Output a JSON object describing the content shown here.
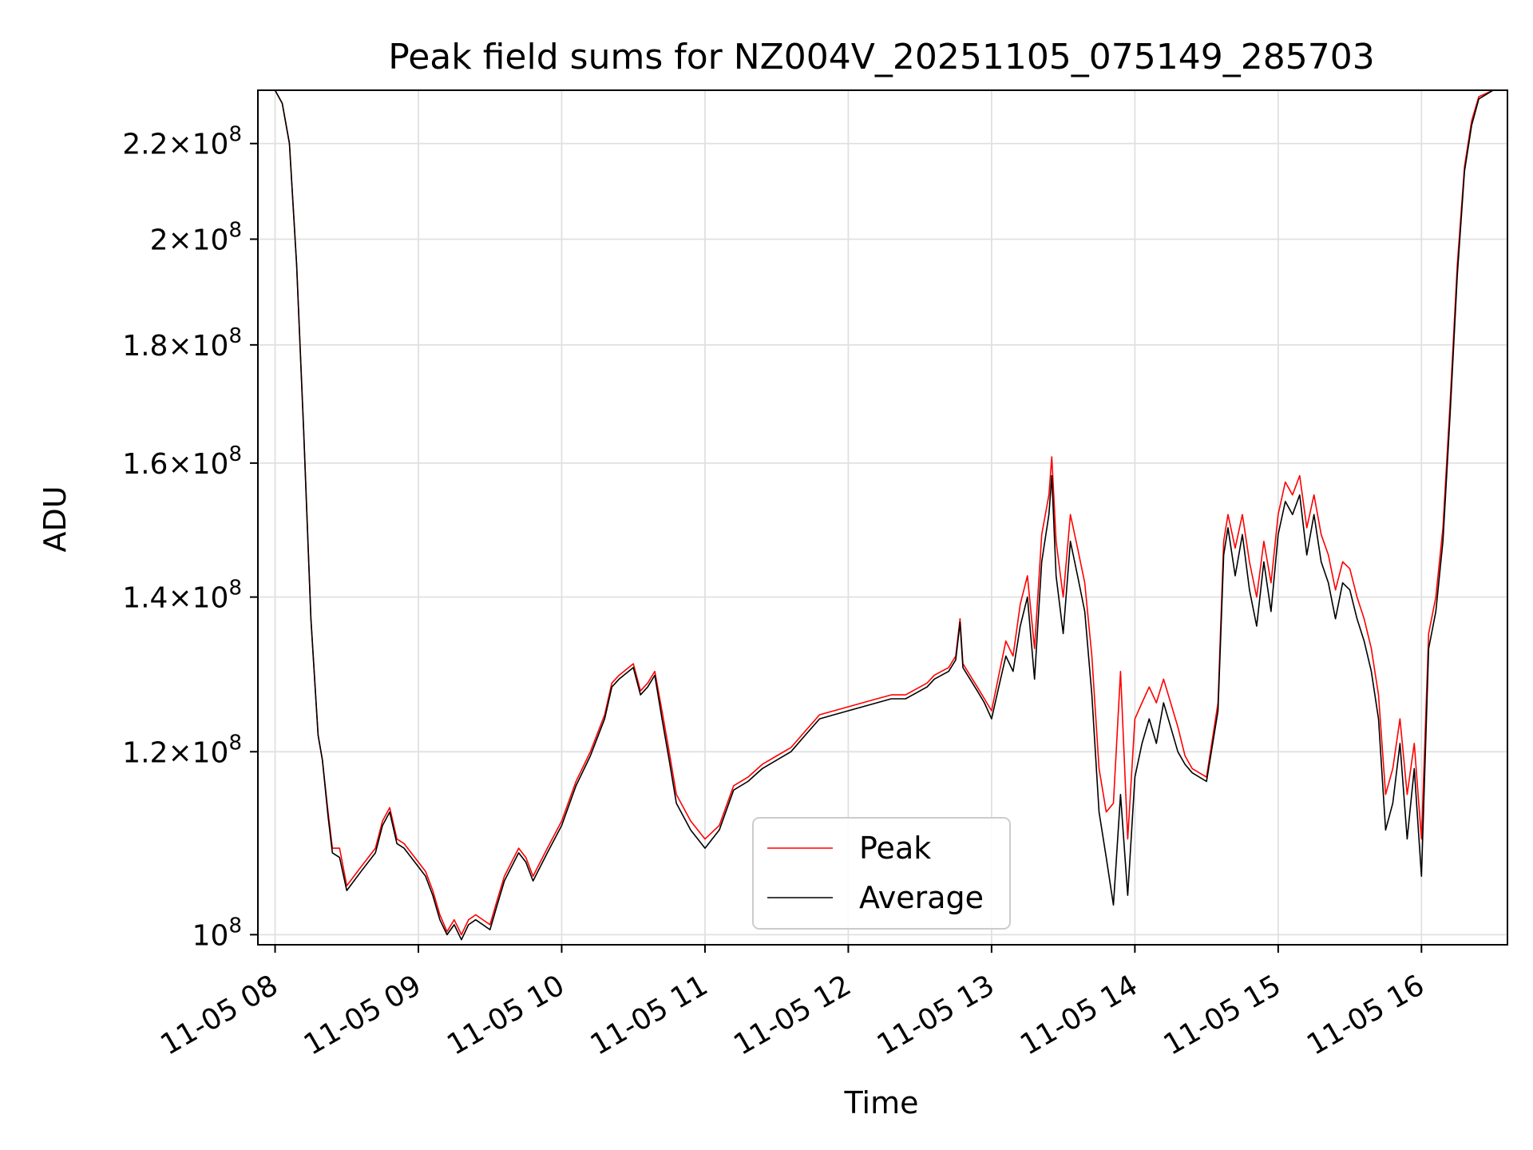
{
  "chart_data": {
    "type": "line",
    "title": "Peak field sums for NZ004V_20251105_075149_285703",
    "xlabel": "Time",
    "ylabel": "ADU",
    "yscale": "log",
    "ylim": [
      99000000,
      232000000
    ],
    "xlim": [
      7.88,
      16.6
    ],
    "grid": true,
    "legend_position": "lower-center",
    "xticks": [
      {
        "value": 8,
        "label": "11-05 08"
      },
      {
        "value": 9,
        "label": "11-05 09"
      },
      {
        "value": 10,
        "label": "11-05 10"
      },
      {
        "value": 11,
        "label": "11-05 11"
      },
      {
        "value": 12,
        "label": "11-05 12"
      },
      {
        "value": 13,
        "label": "11-05 13"
      },
      {
        "value": 14,
        "label": "11-05 14"
      },
      {
        "value": 15,
        "label": "11-05 15"
      },
      {
        "value": 16,
        "label": "11-05 16"
      }
    ],
    "yticks": [
      {
        "value": 100000000,
        "mant": "",
        "exp": "8"
      },
      {
        "value": 120000000,
        "mant": "1.2",
        "exp": "8"
      },
      {
        "value": 140000000,
        "mant": "1.4",
        "exp": "8"
      },
      {
        "value": 160000000,
        "mant": "1.6",
        "exp": "8"
      },
      {
        "value": 180000000,
        "mant": "1.8",
        "exp": "8"
      },
      {
        "value": 200000000,
        "mant": "2",
        "exp": "8"
      },
      {
        "value": 220000000,
        "mant": "2.2",
        "exp": "8"
      }
    ],
    "tick_base": "10",
    "times_sign": "×",
    "series": [
      {
        "name": "Peak",
        "color": "#ff0000",
        "points": [
          [
            7.88,
            232.0
          ],
          [
            8.0,
            232.0
          ],
          [
            8.05,
            229.0
          ],
          [
            8.1,
            220.0
          ],
          [
            8.15,
            195.0
          ],
          [
            8.2,
            165.0
          ],
          [
            8.25,
            137.0
          ],
          [
            8.3,
            122.0
          ],
          [
            8.33,
            119.0
          ],
          [
            8.37,
            113.0
          ],
          [
            8.4,
            109.0
          ],
          [
            8.45,
            109.0
          ],
          [
            8.5,
            105.0
          ],
          [
            8.6,
            107.0
          ],
          [
            8.7,
            109.0
          ],
          [
            8.75,
            112.0
          ],
          [
            8.8,
            113.5
          ],
          [
            8.85,
            110.0
          ],
          [
            8.9,
            109.5
          ],
          [
            9.0,
            107.5
          ],
          [
            9.05,
            106.5
          ],
          [
            9.1,
            104.5
          ],
          [
            9.15,
            102.0
          ],
          [
            9.2,
            100.3
          ],
          [
            9.25,
            101.5
          ],
          [
            9.3,
            100.0
          ],
          [
            9.35,
            101.5
          ],
          [
            9.4,
            102.0
          ],
          [
            9.5,
            101.0
          ],
          [
            9.55,
            103.5
          ],
          [
            9.6,
            106.0
          ],
          [
            9.65,
            107.5
          ],
          [
            9.7,
            109.0
          ],
          [
            9.75,
            108.0
          ],
          [
            9.8,
            106.0
          ],
          [
            9.85,
            107.5
          ],
          [
            9.9,
            109.0
          ],
          [
            10.0,
            112.0
          ],
          [
            10.1,
            116.5
          ],
          [
            10.2,
            120.0
          ],
          [
            10.3,
            124.5
          ],
          [
            10.35,
            128.5
          ],
          [
            10.4,
            129.5
          ],
          [
            10.5,
            131.0
          ],
          [
            10.55,
            127.5
          ],
          [
            10.6,
            128.5
          ],
          [
            10.65,
            130.0
          ],
          [
            10.7,
            125.0
          ],
          [
            10.75,
            120.0
          ],
          [
            10.8,
            115.0
          ],
          [
            10.9,
            112.0
          ],
          [
            11.0,
            110.0
          ],
          [
            11.1,
            111.5
          ],
          [
            11.2,
            116.0
          ],
          [
            11.3,
            117.0
          ],
          [
            11.4,
            118.5
          ],
          [
            11.5,
            119.5
          ],
          [
            11.6,
            120.5
          ],
          [
            11.7,
            122.5
          ],
          [
            11.8,
            124.5
          ],
          [
            11.9,
            125.0
          ],
          [
            12.0,
            125.5
          ],
          [
            12.1,
            126.0
          ],
          [
            12.2,
            126.5
          ],
          [
            12.3,
            127.0
          ],
          [
            12.4,
            127.0
          ],
          [
            12.5,
            128.0
          ],
          [
            12.55,
            128.5
          ],
          [
            12.6,
            129.5
          ],
          [
            12.65,
            130.0
          ],
          [
            12.7,
            130.5
          ],
          [
            12.75,
            132.0
          ],
          [
            12.78,
            137.0
          ],
          [
            12.8,
            131.0
          ],
          [
            12.9,
            128.0
          ],
          [
            12.95,
            126.5
          ],
          [
            13.0,
            125.0
          ],
          [
            13.05,
            129.5
          ],
          [
            13.1,
            134.0
          ],
          [
            13.15,
            132.0
          ],
          [
            13.2,
            139.0
          ],
          [
            13.25,
            143.0
          ],
          [
            13.3,
            133.0
          ],
          [
            13.35,
            149.0
          ],
          [
            13.4,
            155.0
          ],
          [
            13.42,
            161.0
          ],
          [
            13.45,
            148.0
          ],
          [
            13.5,
            140.0
          ],
          [
            13.55,
            152.0
          ],
          [
            13.6,
            147.0
          ],
          [
            13.65,
            142.0
          ],
          [
            13.7,
            132.0
          ],
          [
            13.75,
            118.0
          ],
          [
            13.8,
            113.0
          ],
          [
            13.85,
            114.0
          ],
          [
            13.9,
            130.0
          ],
          [
            13.95,
            110.0
          ],
          [
            14.0,
            124.0
          ],
          [
            14.05,
            126.0
          ],
          [
            14.1,
            128.0
          ],
          [
            14.15,
            126.0
          ],
          [
            14.2,
            129.0
          ],
          [
            14.25,
            126.0
          ],
          [
            14.3,
            123.0
          ],
          [
            14.35,
            119.5
          ],
          [
            14.4,
            118.0
          ],
          [
            14.5,
            117.0
          ],
          [
            14.58,
            126.0
          ],
          [
            14.62,
            148.0
          ],
          [
            14.65,
            152.0
          ],
          [
            14.7,
            147.0
          ],
          [
            14.75,
            152.0
          ],
          [
            14.8,
            145.0
          ],
          [
            14.85,
            140.0
          ],
          [
            14.9,
            148.0
          ],
          [
            14.95,
            142.0
          ],
          [
            15.0,
            152.0
          ],
          [
            15.05,
            157.0
          ],
          [
            15.1,
            155.0
          ],
          [
            15.15,
            158.0
          ],
          [
            15.2,
            150.0
          ],
          [
            15.25,
            155.0
          ],
          [
            15.3,
            149.0
          ],
          [
            15.35,
            146.0
          ],
          [
            15.4,
            141.0
          ],
          [
            15.45,
            145.0
          ],
          [
            15.5,
            144.0
          ],
          [
            15.55,
            140.0
          ],
          [
            15.6,
            137.0
          ],
          [
            15.65,
            133.0
          ],
          [
            15.7,
            127.0
          ],
          [
            15.75,
            115.0
          ],
          [
            15.8,
            118.0
          ],
          [
            15.85,
            124.0
          ],
          [
            15.9,
            115.0
          ],
          [
            15.95,
            121.0
          ],
          [
            16.0,
            110.0
          ],
          [
            16.05,
            135.0
          ],
          [
            16.1,
            140.0
          ],
          [
            16.15,
            150.0
          ],
          [
            16.2,
            170.0
          ],
          [
            16.25,
            195.0
          ],
          [
            16.3,
            215.0
          ],
          [
            16.35,
            225.0
          ],
          [
            16.4,
            230.5
          ],
          [
            16.5,
            232.0
          ],
          [
            16.6,
            232.0
          ]
        ]
      },
      {
        "name": "Average",
        "color": "#000000",
        "points": [
          [
            7.88,
            232.0
          ],
          [
            8.0,
            232.0
          ],
          [
            8.05,
            229.0
          ],
          [
            8.1,
            220.0
          ],
          [
            8.15,
            195.0
          ],
          [
            8.2,
            165.0
          ],
          [
            8.25,
            137.0
          ],
          [
            8.3,
            122.0
          ],
          [
            8.33,
            119.0
          ],
          [
            8.37,
            112.5
          ],
          [
            8.4,
            108.5
          ],
          [
            8.45,
            108.0
          ],
          [
            8.5,
            104.5
          ],
          [
            8.6,
            106.5
          ],
          [
            8.7,
            108.5
          ],
          [
            8.75,
            111.5
          ],
          [
            8.8,
            113.0
          ],
          [
            8.85,
            109.5
          ],
          [
            8.9,
            109.0
          ],
          [
            9.0,
            107.0
          ],
          [
            9.05,
            106.0
          ],
          [
            9.1,
            104.0
          ],
          [
            9.15,
            101.5
          ],
          [
            9.2,
            100.0
          ],
          [
            9.25,
            101.0
          ],
          [
            9.3,
            99.5
          ],
          [
            9.35,
            101.0
          ],
          [
            9.4,
            101.5
          ],
          [
            9.5,
            100.5
          ],
          [
            9.55,
            103.0
          ],
          [
            9.6,
            105.5
          ],
          [
            9.65,
            107.0
          ],
          [
            9.7,
            108.5
          ],
          [
            9.75,
            107.5
          ],
          [
            9.8,
            105.5
          ],
          [
            9.85,
            107.0
          ],
          [
            9.9,
            108.5
          ],
          [
            10.0,
            111.5
          ],
          [
            10.1,
            116.0
          ],
          [
            10.2,
            119.5
          ],
          [
            10.3,
            124.0
          ],
          [
            10.35,
            128.0
          ],
          [
            10.4,
            129.0
          ],
          [
            10.5,
            130.5
          ],
          [
            10.55,
            127.0
          ],
          [
            10.6,
            128.0
          ],
          [
            10.65,
            129.5
          ],
          [
            10.7,
            124.0
          ],
          [
            10.75,
            119.0
          ],
          [
            10.8,
            114.0
          ],
          [
            10.9,
            111.0
          ],
          [
            11.0,
            109.0
          ],
          [
            11.1,
            111.0
          ],
          [
            11.2,
            115.5
          ],
          [
            11.3,
            116.5
          ],
          [
            11.4,
            118.0
          ],
          [
            11.5,
            119.0
          ],
          [
            11.6,
            120.0
          ],
          [
            11.7,
            122.0
          ],
          [
            11.8,
            124.0
          ],
          [
            11.9,
            124.5
          ],
          [
            12.0,
            125.0
          ],
          [
            12.1,
            125.5
          ],
          [
            12.2,
            126.0
          ],
          [
            12.3,
            126.5
          ],
          [
            12.4,
            126.5
          ],
          [
            12.5,
            127.5
          ],
          [
            12.55,
            128.0
          ],
          [
            12.6,
            129.0
          ],
          [
            12.65,
            129.5
          ],
          [
            12.7,
            130.0
          ],
          [
            12.75,
            131.5
          ],
          [
            12.78,
            136.5
          ],
          [
            12.8,
            130.5
          ],
          [
            12.9,
            127.5
          ],
          [
            12.95,
            126.0
          ],
          [
            13.0,
            124.0
          ],
          [
            13.05,
            128.0
          ],
          [
            13.1,
            132.0
          ],
          [
            13.15,
            130.0
          ],
          [
            13.2,
            136.0
          ],
          [
            13.25,
            140.0
          ],
          [
            13.3,
            129.0
          ],
          [
            13.35,
            145.0
          ],
          [
            13.4,
            152.0
          ],
          [
            13.42,
            158.0
          ],
          [
            13.45,
            143.0
          ],
          [
            13.5,
            135.0
          ],
          [
            13.55,
            148.0
          ],
          [
            13.6,
            143.0
          ],
          [
            13.65,
            138.0
          ],
          [
            13.7,
            127.0
          ],
          [
            13.75,
            113.0
          ],
          [
            13.8,
            108.0
          ],
          [
            13.85,
            103.0
          ],
          [
            13.9,
            115.0
          ],
          [
            13.95,
            104.0
          ],
          [
            14.0,
            117.0
          ],
          [
            14.05,
            121.0
          ],
          [
            14.1,
            124.0
          ],
          [
            14.15,
            121.0
          ],
          [
            14.2,
            126.0
          ],
          [
            14.25,
            123.0
          ],
          [
            14.3,
            120.0
          ],
          [
            14.35,
            118.5
          ],
          [
            14.4,
            117.5
          ],
          [
            14.5,
            116.5
          ],
          [
            14.58,
            125.0
          ],
          [
            14.62,
            146.0
          ],
          [
            14.65,
            150.0
          ],
          [
            14.7,
            143.0
          ],
          [
            14.75,
            149.0
          ],
          [
            14.8,
            141.0
          ],
          [
            14.85,
            136.0
          ],
          [
            14.9,
            145.0
          ],
          [
            14.95,
            138.0
          ],
          [
            15.0,
            149.0
          ],
          [
            15.05,
            154.0
          ],
          [
            15.1,
            152.0
          ],
          [
            15.15,
            155.0
          ],
          [
            15.2,
            146.0
          ],
          [
            15.25,
            152.0
          ],
          [
            15.3,
            145.0
          ],
          [
            15.35,
            142.0
          ],
          [
            15.4,
            137.0
          ],
          [
            15.45,
            142.0
          ],
          [
            15.5,
            141.0
          ],
          [
            15.55,
            137.0
          ],
          [
            15.6,
            134.0
          ],
          [
            15.65,
            130.0
          ],
          [
            15.7,
            124.0
          ],
          [
            15.75,
            111.0
          ],
          [
            15.8,
            114.0
          ],
          [
            15.85,
            121.0
          ],
          [
            15.9,
            110.0
          ],
          [
            15.95,
            118.0
          ],
          [
            16.0,
            106.0
          ],
          [
            16.05,
            133.0
          ],
          [
            16.1,
            138.0
          ],
          [
            16.15,
            148.0
          ],
          [
            16.2,
            168.0
          ],
          [
            16.25,
            193.0
          ],
          [
            16.3,
            214.0
          ],
          [
            16.35,
            224.0
          ],
          [
            16.4,
            230.0
          ],
          [
            16.5,
            232.0
          ],
          [
            16.6,
            232.0
          ]
        ]
      }
    ]
  }
}
